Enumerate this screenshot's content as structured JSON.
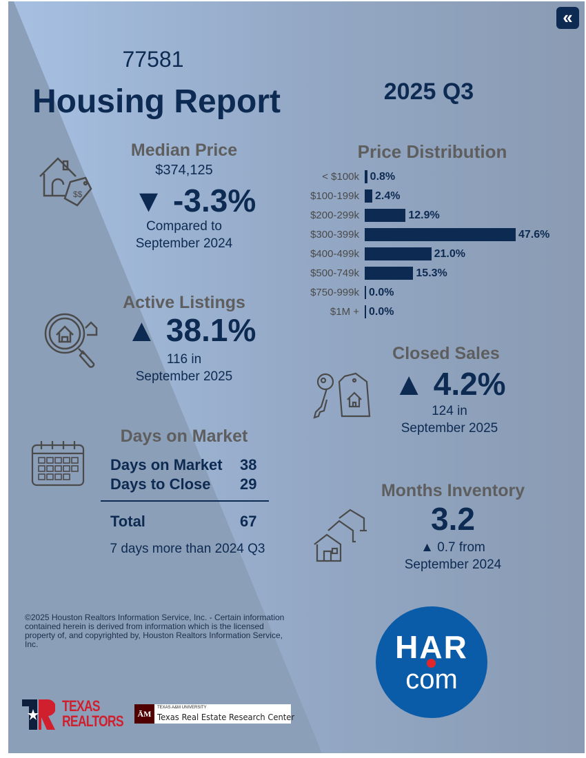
{
  "header": {
    "zip": "77581",
    "title": "Housing Report",
    "period": "2025 Q3",
    "back_icon": "double-chevron-left-icon"
  },
  "median_price": {
    "title": "Median Price",
    "value": "$374,125",
    "change": "▼ -3.3%",
    "compare_1": "Compared to",
    "compare_2": "September 2024"
  },
  "active_listings": {
    "title": "Active Listings",
    "change": "▲ 38.1%",
    "line_1": "116 in",
    "line_2": "September 2025"
  },
  "days_on_market": {
    "title": "Days on Market",
    "rows": [
      {
        "label": "Days on Market",
        "value": "38"
      },
      {
        "label": "Days to Close",
        "value": "29"
      }
    ],
    "total_label": "Total",
    "total_value": "67",
    "note": "7 days more than 2024 Q3"
  },
  "price_distribution": {
    "title": "Price Distribution"
  },
  "chart_data": {
    "type": "bar",
    "orientation": "horizontal",
    "categories": [
      "< $100k",
      "$100-199k",
      "$200-299k",
      "$300-399k",
      "$400-499k",
      "$500-749k",
      "$750-999k",
      "$1M +"
    ],
    "values": [
      0.8,
      2.4,
      12.9,
      47.6,
      21.0,
      15.3,
      0.0,
      0.0
    ],
    "labels": [
      "0.8%",
      "2.4%",
      "12.9%",
      "47.6%",
      "21.0%",
      "15.3%",
      "0.0%",
      "0.0%"
    ],
    "unit": "%",
    "color": "#0d2b52"
  },
  "closed_sales": {
    "title": "Closed Sales",
    "change": "▲ 4.2%",
    "line_1": "124 in",
    "line_2": "September 2025"
  },
  "months_inventory": {
    "title": "Months Inventory",
    "value": "3.2",
    "line_1": "▲ 0.7 from",
    "line_2": "September 2024"
  },
  "footer": {
    "copyright": "©2025 Houston Realtors Information Service, Inc. - Certain information contained herein is derived from information which is the licensed property of, and copyrighted by, Houston Realtors Information Service, Inc.",
    "texas_realtors_1": "TEXAS",
    "texas_realtors_2": "REALTORS",
    "tamu_top": "TEXAS A&M UNIVERSITY",
    "tamu_name": "Texas Real Estate Research Center",
    "har_1": "HAR",
    "har_2": "com"
  },
  "colors": {
    "navy": "#0d2b52",
    "gray_heading": "#5e5e5e",
    "har_blue": "#0a5ca8",
    "har_red": "#e0262b",
    "realtors_red": "#d0202e",
    "tamu_maroon": "#500000"
  }
}
